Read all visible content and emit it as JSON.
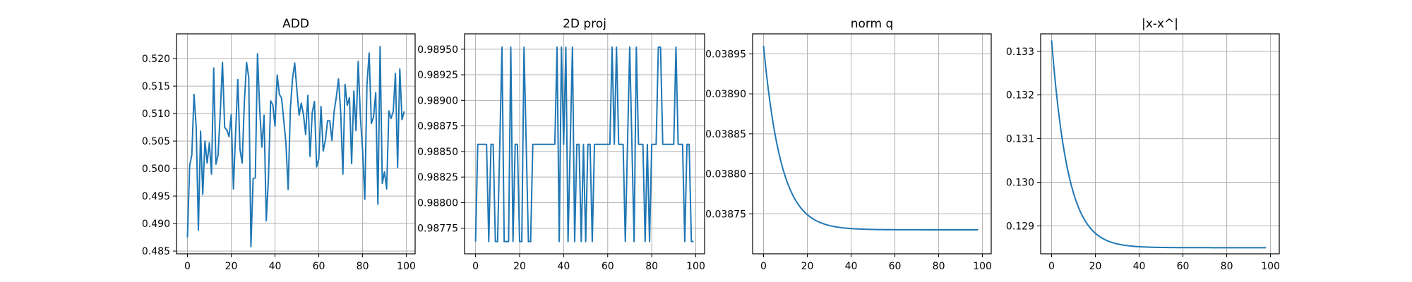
{
  "chart_data": [
    {
      "type": "line",
      "title": "ADD",
      "xlabel": "",
      "ylabel": "",
      "xlim": [
        -5,
        104
      ],
      "ylim": [
        0.4845,
        0.5245
      ],
      "x_ticks": [
        0,
        20,
        40,
        60,
        80,
        100
      ],
      "y_ticks": [
        0.485,
        0.49,
        0.495,
        0.5,
        0.505,
        0.51,
        0.515,
        0.52
      ],
      "y_tick_labels": [
        "0.485",
        "0.490",
        "0.495",
        "0.500",
        "0.505",
        "0.510",
        "0.515",
        "0.520"
      ],
      "grid": true,
      "color": "#1f77b4",
      "x": [
        0,
        1,
        2,
        3,
        4,
        5,
        6,
        7,
        8,
        9,
        10,
        11,
        12,
        13,
        14,
        15,
        16,
        17,
        18,
        19,
        20,
        21,
        22,
        23,
        24,
        25,
        26,
        27,
        28,
        29,
        30,
        31,
        32,
        33,
        34,
        35,
        36,
        37,
        38,
        39,
        40,
        41,
        42,
        43,
        44,
        45,
        46,
        47,
        48,
        49,
        50,
        51,
        52,
        53,
        54,
        55,
        56,
        57,
        58,
        59,
        60,
        61,
        62,
        63,
        64,
        65,
        66,
        67,
        68,
        69,
        70,
        71,
        72,
        73,
        74,
        75,
        76,
        77,
        78,
        79,
        80,
        81,
        82,
        83,
        84,
        85,
        86,
        87,
        88,
        89,
        90,
        91,
        92,
        93,
        94,
        95,
        96,
        97,
        98,
        99
      ],
      "y": [
        0.4875,
        0.5005,
        0.5025,
        0.5135,
        0.5075,
        0.4888,
        0.5068,
        0.4953,
        0.505,
        0.501,
        0.5047,
        0.499,
        0.5183,
        0.5008,
        0.5025,
        0.5102,
        0.5193,
        0.5075,
        0.507,
        0.5058,
        0.5098,
        0.4963,
        0.5065,
        0.5162,
        0.5035,
        0.501,
        0.5121,
        0.5193,
        0.5165,
        0.4858,
        0.4982,
        0.4983,
        0.5209,
        0.5108,
        0.5039,
        0.5097,
        0.4905,
        0.4983,
        0.5123,
        0.5116,
        0.5077,
        0.517,
        0.5135,
        0.5128,
        0.5088,
        0.5045,
        0.4962,
        0.5108,
        0.5164,
        0.5192,
        0.5143,
        0.5097,
        0.5119,
        0.5098,
        0.5062,
        0.5133,
        0.5022,
        0.5102,
        0.5122,
        0.5003,
        0.5018,
        0.5113,
        0.5032,
        0.5051,
        0.5087,
        0.5087,
        0.5051,
        0.5104,
        0.513,
        0.5163,
        0.5102,
        0.499,
        0.5153,
        0.5115,
        0.5129,
        0.5009,
        0.5141,
        0.5069,
        0.5195,
        0.5094,
        0.5033,
        0.4944,
        0.5153,
        0.521,
        0.5082,
        0.5094,
        0.5138,
        0.4935,
        0.5222,
        0.4973,
        0.4994,
        0.4963,
        0.5105,
        0.5091,
        0.5104,
        0.5173,
        0.5002,
        0.5181,
        0.5089,
        0.5104
      ]
    },
    {
      "type": "line",
      "title": "2D proj",
      "xlabel": "",
      "ylabel": "",
      "xlim": [
        -5,
        104
      ],
      "ylim": [
        0.9875,
        0.98965
      ],
      "x_ticks": [
        0,
        20,
        40,
        60,
        80,
        100
      ],
      "y_ticks": [
        0.98775,
        0.988,
        0.98825,
        0.9885,
        0.98875,
        0.989,
        0.98925,
        0.9895
      ],
      "y_tick_labels": [
        "0.98775",
        "0.98800",
        "0.98825",
        "0.98850",
        "0.98875",
        "0.98900",
        "0.98925",
        "0.98950"
      ],
      "grid": true,
      "color": "#1f77b4",
      "x": [
        0,
        1,
        2,
        3,
        4,
        5,
        6,
        7,
        8,
        9,
        10,
        11,
        12,
        13,
        14,
        15,
        16,
        17,
        18,
        19,
        20,
        21,
        22,
        23,
        24,
        25,
        26,
        27,
        28,
        29,
        30,
        31,
        32,
        33,
        34,
        35,
        36,
        37,
        38,
        39,
        40,
        41,
        42,
        43,
        44,
        45,
        46,
        47,
        48,
        49,
        50,
        51,
        52,
        53,
        54,
        55,
        56,
        57,
        58,
        59,
        60,
        61,
        62,
        63,
        64,
        65,
        66,
        67,
        68,
        69,
        70,
        71,
        72,
        73,
        74,
        75,
        76,
        77,
        78,
        79,
        80,
        81,
        82,
        83,
        84,
        85,
        86,
        87,
        88,
        89,
        90,
        91,
        92,
        93,
        94,
        95,
        96,
        97,
        98,
        99
      ],
      "y": [
        0.98762,
        0.98857,
        0.98857,
        0.98857,
        0.98857,
        0.98857,
        0.98762,
        0.98857,
        0.98857,
        0.98762,
        0.98762,
        0.98857,
        0.98952,
        0.98762,
        0.98762,
        0.98762,
        0.98952,
        0.98762,
        0.98857,
        0.98857,
        0.98762,
        0.98762,
        0.98952,
        0.98857,
        0.98762,
        0.98762,
        0.98857,
        0.98857,
        0.98857,
        0.98857,
        0.98857,
        0.98857,
        0.98857,
        0.98857,
        0.98857,
        0.98857,
        0.98857,
        0.98952,
        0.98762,
        0.98952,
        0.98857,
        0.98952,
        0.98762,
        0.98857,
        0.98952,
        0.98762,
        0.98857,
        0.98857,
        0.98762,
        0.98857,
        0.98762,
        0.98857,
        0.98857,
        0.98762,
        0.98857,
        0.98857,
        0.98857,
        0.98857,
        0.98857,
        0.98857,
        0.98857,
        0.98857,
        0.98952,
        0.98857,
        0.98952,
        0.98857,
        0.98857,
        0.98857,
        0.98762,
        0.98857,
        0.98952,
        0.98857,
        0.98762,
        0.98952,
        0.98857,
        0.98857,
        0.98857,
        0.98762,
        0.98857,
        0.98762,
        0.98857,
        0.98857,
        0.98857,
        0.98952,
        0.98952,
        0.98857,
        0.98857,
        0.98857,
        0.98857,
        0.98857,
        0.98857,
        0.98952,
        0.98857,
        0.98857,
        0.98857,
        0.98762,
        0.98857,
        0.98857,
        0.98762,
        0.98762
      ]
    },
    {
      "type": "line",
      "title": "norm q",
      "xlabel": "",
      "ylabel": "",
      "xlim": [
        -5,
        104
      ],
      "ylim": [
        0.0387,
        0.038975
      ],
      "x_ticks": [
        0,
        20,
        40,
        60,
        80,
        100
      ],
      "y_ticks": [
        0.03875,
        0.0388,
        0.03885,
        0.0389,
        0.03895
      ],
      "y_tick_labels": [
        "0.03875",
        "0.03880",
        "0.03885",
        "0.03890",
        "0.03895"
      ],
      "grid": true,
      "color": "#1f77b4",
      "curve": "exponential_decay",
      "x_start": 0,
      "x_end": 98,
      "y_start": 0.03896,
      "y_end": 0.03873,
      "decay_constant": 8.0
    },
    {
      "type": "line",
      "title": "|x-x^|",
      "xlabel": "",
      "ylabel": "",
      "xlim": [
        -5,
        104
      ],
      "ylim": [
        0.12836,
        0.1334
      ],
      "x_ticks": [
        0,
        20,
        40,
        60,
        80,
        100
      ],
      "y_ticks": [
        0.129,
        0.13,
        0.131,
        0.132,
        0.133
      ],
      "y_tick_labels": [
        "0.129",
        "0.130",
        "0.131",
        "0.132",
        "0.133"
      ],
      "grid": true,
      "color": "#1f77b4",
      "curve": "exponential_decay",
      "x_start": 0,
      "x_end": 98,
      "y_start": 0.13325,
      "y_end": 0.1285,
      "decay_constant": 7.5
    }
  ]
}
